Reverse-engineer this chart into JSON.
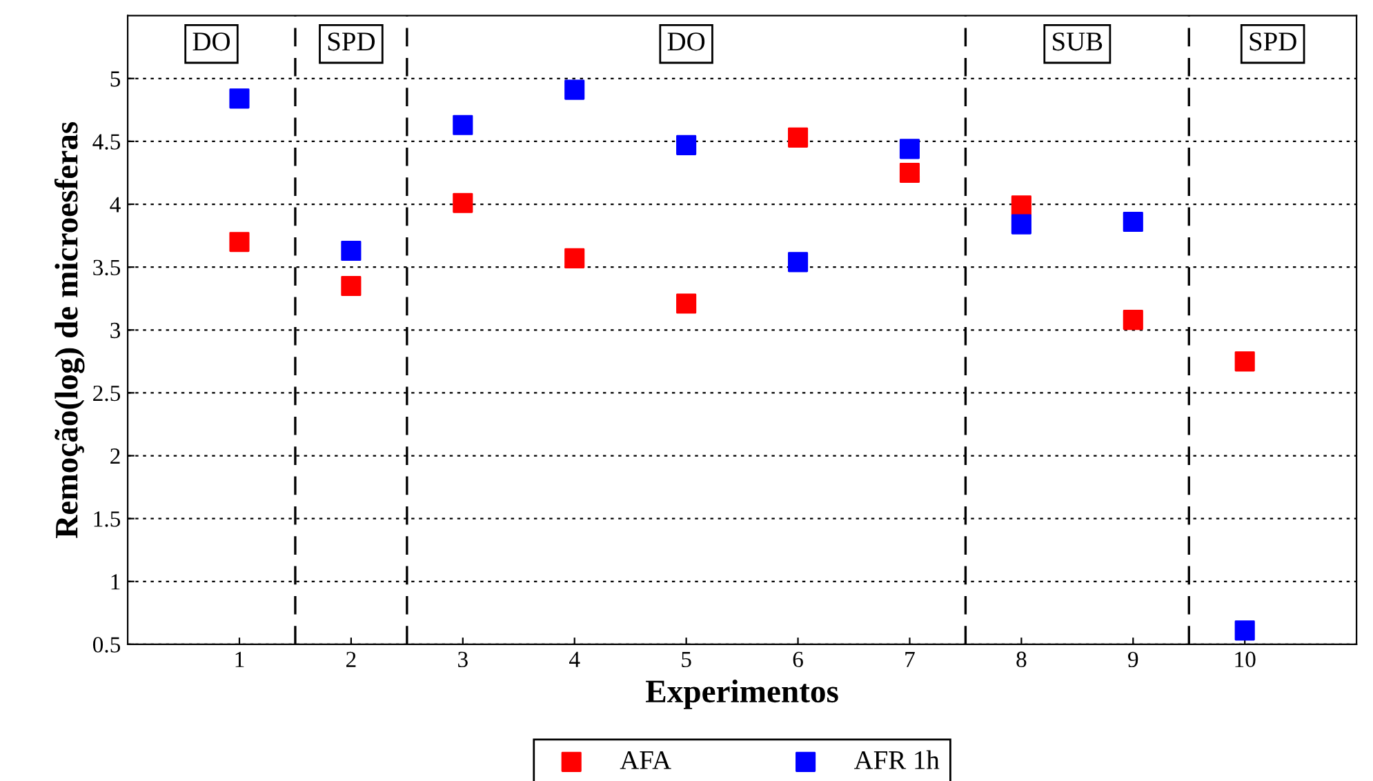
{
  "chart_data": {
    "type": "scatter",
    "xlabel": "Experimentos",
    "ylabel": "Remoção(log) de microesferas",
    "x": [
      1,
      2,
      3,
      4,
      5,
      6,
      7,
      8,
      9,
      10
    ],
    "series": [
      {
        "name": "AFA",
        "color": "#ff0000",
        "values": [
          3.7,
          3.35,
          4.01,
          3.57,
          3.21,
          4.53,
          4.25,
          3.99,
          3.08,
          2.75
        ]
      },
      {
        "name": "AFR 1h",
        "color": "#0000ff",
        "values": [
          4.84,
          3.63,
          4.63,
          4.91,
          4.47,
          3.54,
          4.44,
          3.84,
          3.86,
          0.61
        ]
      }
    ],
    "xlim": [
      0,
      11
    ],
    "xticks": [
      1,
      2,
      3,
      4,
      5,
      6,
      7,
      8,
      9,
      10
    ],
    "ylim": [
      0.5,
      5.5
    ],
    "yticks": [
      0.5,
      1,
      1.5,
      2,
      2.5,
      3,
      3.5,
      4,
      4.5,
      5
    ],
    "ref_lines": [
      {
        "axis": "x",
        "value": 1.5,
        "color": "#000000",
        "line_style": "dashed"
      },
      {
        "axis": "x",
        "value": 2.5,
        "color": "#000000",
        "line_style": "dashed"
      },
      {
        "axis": "x",
        "value": 7.5,
        "color": "#000000",
        "line_style": "dashed"
      },
      {
        "axis": "x",
        "value": 9.5,
        "color": "#000000",
        "line_style": "dashed"
      }
    ],
    "annotations": [
      "DO",
      "SPD",
      "DO",
      "SUB",
      "SPD"
    ],
    "grid": "y",
    "legend": "bottom",
    "marker": "square"
  }
}
